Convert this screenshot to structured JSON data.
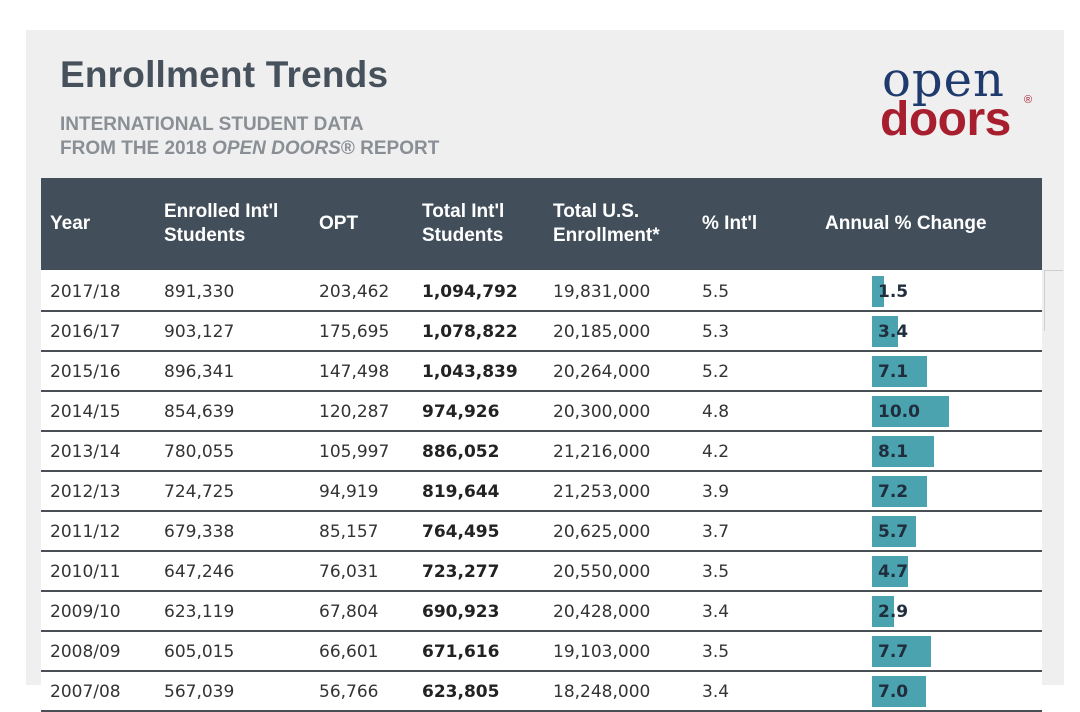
{
  "header": {
    "title": "Enrollment Trends",
    "subtitle_line1": "INTERNATIONAL STUDENT DATA",
    "subtitle_line2_prefix": "FROM THE 2018 ",
    "subtitle_line2_italic": "OPEN DOORS",
    "subtitle_line2_suffix": "® REPORT"
  },
  "logo": {
    "top": "open",
    "bottom": "doors",
    "reg": "®"
  },
  "colors": {
    "header_bg": "#424f5b",
    "bar": "#4ba3b0",
    "title": "#46515c",
    "logo_blue": "#1f3b6e",
    "logo_red": "#a71f2e"
  },
  "chart_data": {
    "type": "table",
    "columns": [
      "Year",
      "Enrolled Int'l Students",
      "OPT",
      "Total Int'l Students",
      "Total U.S. Enrollment*",
      "% Int'l",
      "Annual % Change"
    ],
    "rows": [
      {
        "year": "2017/18",
        "enrolled": "891,330",
        "opt": "203,462",
        "total": "1,094,792",
        "us": "19,831,000",
        "pct": "5.5",
        "change": "1.5"
      },
      {
        "year": "2016/17",
        "enrolled": "903,127",
        "opt": "175,695",
        "total": "1,078,822",
        "us": "20,185,000",
        "pct": "5.3",
        "change": "3.4"
      },
      {
        "year": "2015/16",
        "enrolled": "896,341",
        "opt": "147,498",
        "total": "1,043,839",
        "us": "20,264,000",
        "pct": "5.2",
        "change": "7.1"
      },
      {
        "year": "2014/15",
        "enrolled": "854,639",
        "opt": "120,287",
        "total": "974,926",
        "us": "20,300,000",
        "pct": "4.8",
        "change": "10.0"
      },
      {
        "year": "2013/14",
        "enrolled": "780,055",
        "opt": "105,997",
        "total": "886,052",
        "us": "21,216,000",
        "pct": "4.2",
        "change": "8.1"
      },
      {
        "year": "2012/13",
        "enrolled": "724,725",
        "opt": "94,919",
        "total": "819,644",
        "us": "21,253,000",
        "pct": "3.9",
        "change": "7.2"
      },
      {
        "year": "2011/12",
        "enrolled": "679,338",
        "opt": "85,157",
        "total": "764,495",
        "us": "20,625,000",
        "pct": "3.7",
        "change": "5.7"
      },
      {
        "year": "2010/11",
        "enrolled": "647,246",
        "opt": "76,031",
        "total": "723,277",
        "us": "20,550,000",
        "pct": "3.5",
        "change": "4.7"
      },
      {
        "year": "2009/10",
        "enrolled": "623,119",
        "opt": "67,804",
        "total": "690,923",
        "us": "20,428,000",
        "pct": "3.4",
        "change": "2.9"
      },
      {
        "year": "2008/09",
        "enrolled": "605,015",
        "opt": "66,601",
        "total": "671,616",
        "us": "19,103,000",
        "pct": "3.5",
        "change": "7.7"
      },
      {
        "year": "2007/08",
        "enrolled": "567,039",
        "opt": "56,766",
        "total": "623,805",
        "us": "18,248,000",
        "pct": "3.4",
        "change": "7.0"
      }
    ]
  }
}
